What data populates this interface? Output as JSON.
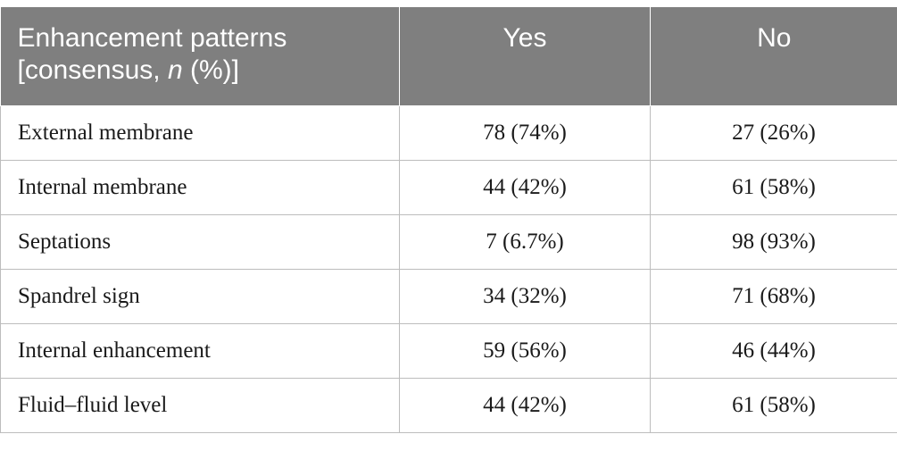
{
  "table": {
    "header": {
      "col1_line1": "Enhancement patterns",
      "col1_line2_pre": "[consensus, ",
      "col1_line2_italic": "n",
      "col1_line2_post": " (%)]",
      "col2": "Yes",
      "col3": "No"
    },
    "rows": [
      {
        "label": "External membrane",
        "yes": "78 (74%)",
        "no": "27 (26%)"
      },
      {
        "label": "Internal membrane",
        "yes": "44 (42%)",
        "no": "61 (58%)"
      },
      {
        "label": "Septations",
        "yes": "7 (6.7%)",
        "no": "98 (93%)"
      },
      {
        "label": "Spandrel sign",
        "yes": "34 (32%)",
        "no": "71 (68%)"
      },
      {
        "label": "Internal enhancement",
        "yes": "59 (56%)",
        "no": "46 (44%)"
      },
      {
        "label": "Fluid–fluid level",
        "yes": "44 (42%)",
        "no": "61 (58%)"
      }
    ]
  }
}
